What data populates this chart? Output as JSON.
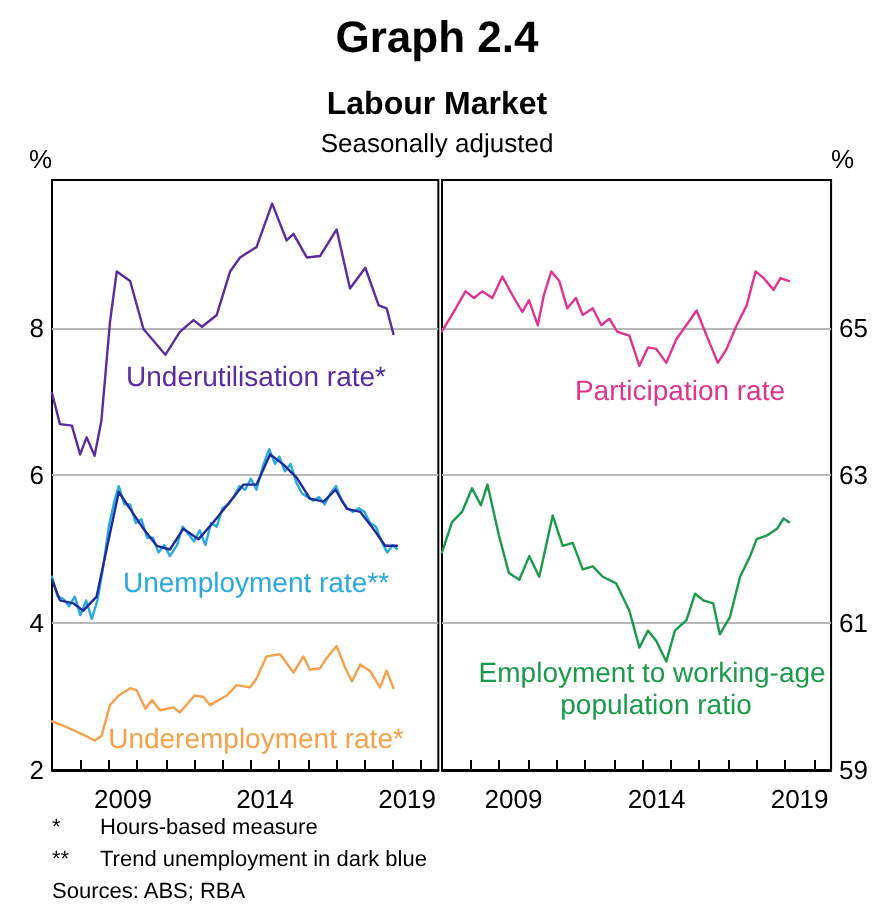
{
  "chart_data": [
    {
      "type": "line",
      "title": "Graph 2.4",
      "subtitle": "Labour Market",
      "ylabel": "%",
      "annotations": [
        "Seasonally adjusted",
        "* Hours-based measure",
        "** Trend unemployment in dark blue",
        "Sources: ABS; RBA"
      ],
      "xlim": [
        2007,
        2020.6
      ],
      "xticks": [
        {
          "value": 2008,
          "label": null
        },
        {
          "value": 2009,
          "label": null
        },
        {
          "value": 2010,
          "label": null
        },
        {
          "value": 2011,
          "label": null
        },
        {
          "value": 2012,
          "label": null
        },
        {
          "value": 2013,
          "label": null
        },
        {
          "value": 2014,
          "label": null
        },
        {
          "value": 2015,
          "label": null
        },
        {
          "value": 2016,
          "label": null
        },
        {
          "value": 2017,
          "label": null
        },
        {
          "value": 2018,
          "label": null
        },
        {
          "value": 2019,
          "label": null
        },
        {
          "value": 2020,
          "label": null
        },
        {
          "value": 2009.5,
          "label": "2009"
        },
        {
          "value": 2014.5,
          "label": "2014"
        },
        {
          "value": 2019.5,
          "label": "2019"
        }
      ],
      "ylim": [
        2,
        10
      ],
      "yticks": [
        2,
        4,
        6,
        8
      ],
      "grid": "y",
      "series": [
        {
          "name": "Underutilisation rate*",
          "color": "#5b2ca0",
          "x": [
            2007,
            2007.28,
            2007.7,
            2007.99,
            2008.22,
            2008.5,
            2008.74,
            2009.04,
            2009.28,
            2009.75,
            2010.22,
            2010.99,
            2011.5,
            2011.98,
            2012.28,
            2012.8,
            2013.27,
            2013.62,
            2014.2,
            2014.75,
            2015.26,
            2015.5,
            2015.97,
            2016.44,
            2017.02,
            2017.49,
            2018.03,
            2018.5,
            2018.78,
            2019.02
          ],
          "values": [
            7.11,
            6.69,
            6.67,
            6.28,
            6.51,
            6.26,
            6.74,
            8.07,
            8.76,
            8.63,
            7.98,
            7.63,
            7.94,
            8.1,
            8.01,
            8.17,
            8.76,
            8.95,
            9.09,
            9.68,
            9.18,
            9.27,
            8.95,
            8.97,
            9.33,
            8.53,
            8.81,
            8.3,
            8.26,
            7.91
          ]
        },
        {
          "name": "Unemployment rate**",
          "color": "#2aa9e0",
          "x": [
            2007,
            2007.2,
            2007.4,
            2007.6,
            2007.8,
            2008,
            2008.2,
            2008.4,
            2008.6,
            2008.8,
            2009,
            2009.2,
            2009.35,
            2009.55,
            2009.75,
            2009.95,
            2010.15,
            2010.35,
            2010.55,
            2010.75,
            2010.95,
            2011.15,
            2011.4,
            2011.6,
            2011.8,
            2012,
            2012.2,
            2012.4,
            2012.6,
            2012.8,
            2013,
            2013.2,
            2013.4,
            2013.6,
            2013.8,
            2014,
            2014.2,
            2014.45,
            2014.65,
            2014.85,
            2015,
            2015.2,
            2015.4,
            2015.6,
            2015.8,
            2016,
            2016.2,
            2016.4,
            2016.6,
            2016.8,
            2017,
            2017.2,
            2017.4,
            2017.6,
            2017.8,
            2018,
            2018.2,
            2018.4,
            2018.6,
            2018.8,
            2019,
            2019.14
          ],
          "values": [
            4.62,
            4.35,
            4.32,
            4.22,
            4.35,
            4.1,
            4.3,
            4.05,
            4.3,
            4.75,
            5.3,
            5.65,
            5.85,
            5.6,
            5.6,
            5.35,
            5.4,
            5.15,
            5.15,
            4.95,
            5.05,
            4.9,
            5.05,
            5.3,
            5.2,
            5.1,
            5.25,
            5.05,
            5.35,
            5.3,
            5.55,
            5.6,
            5.7,
            5.85,
            5.8,
            5.95,
            5.8,
            6.15,
            6.35,
            6.15,
            6.25,
            6.05,
            6.15,
            5.9,
            5.75,
            5.7,
            5.65,
            5.7,
            5.6,
            5.75,
            5.85,
            5.65,
            5.55,
            5.5,
            5.55,
            5.5,
            5.35,
            5.3,
            5.1,
            4.95,
            5.05,
            5
          ]
        },
        {
          "color": "#1c2a9a",
          "x": [
            2007,
            2007.28,
            2007.75,
            2008.1,
            2008.57,
            2008.92,
            2009.35,
            2009.75,
            2010.22,
            2010.69,
            2011.15,
            2011.62,
            2012.16,
            2012.68,
            2013.27,
            2013.74,
            2014.2,
            2014.68,
            2015.15,
            2015.62,
            2016.08,
            2016.56,
            2016.98,
            2017.38,
            2017.85,
            2018.31,
            2018.73,
            2019.14
          ],
          "values": [
            4.58,
            4.3,
            4.26,
            4.16,
            4.35,
            4.99,
            5.77,
            5.54,
            5.27,
            5.04,
            4.99,
            5.27,
            5.13,
            5.36,
            5.64,
            5.87,
            5.87,
            6.28,
            6.14,
            5.96,
            5.68,
            5.64,
            5.8,
            5.54,
            5.5,
            5.27,
            5.04,
            5.04
          ]
        },
        {
          "name": "Underemployment rate*",
          "color": "#f7a04a",
          "x": [
            2007,
            2007.52,
            2008.1,
            2008.5,
            2008.74,
            2009.04,
            2009.35,
            2009.75,
            2009.98,
            2010.29,
            2010.52,
            2010.8,
            2011.27,
            2011.5,
            2012.02,
            2012.33,
            2012.56,
            2013.15,
            2013.5,
            2013.97,
            2014.2,
            2014.55,
            2015.03,
            2015.5,
            2015.85,
            2016.08,
            2016.44,
            2016.67,
            2017.02,
            2017.33,
            2017.56,
            2017.85,
            2018.2,
            2018.55,
            2018.78,
            2019.02
          ],
          "values": [
            2.66,
            2.58,
            2.48,
            2.4,
            2.46,
            2.88,
            3.01,
            3.11,
            3.08,
            2.83,
            2.95,
            2.81,
            2.85,
            2.78,
            3.01,
            2.99,
            2.88,
            3.01,
            3.15,
            3.12,
            3.24,
            3.54,
            3.57,
            3.32,
            3.54,
            3.36,
            3.38,
            3.52,
            3.68,
            3.38,
            3.2,
            3.43,
            3.34,
            3.12,
            3.35,
            3.11
          ]
        }
      ]
    },
    {
      "type": "line",
      "ylabel": "%",
      "xlim": [
        2007,
        2020.6
      ],
      "xticks": [
        {
          "value": 2008,
          "label": null
        },
        {
          "value": 2009,
          "label": null
        },
        {
          "value": 2010,
          "label": null
        },
        {
          "value": 2011,
          "label": null
        },
        {
          "value": 2012,
          "label": null
        },
        {
          "value": 2013,
          "label": null
        },
        {
          "value": 2014,
          "label": null
        },
        {
          "value": 2015,
          "label": null
        },
        {
          "value": 2016,
          "label": null
        },
        {
          "value": 2017,
          "label": null
        },
        {
          "value": 2018,
          "label": null
        },
        {
          "value": 2019,
          "label": null
        },
        {
          "value": 2020,
          "label": null
        },
        {
          "value": 2009.5,
          "label": "2009"
        },
        {
          "value": 2014.5,
          "label": "2014"
        },
        {
          "value": 2019.5,
          "label": "2019"
        }
      ],
      "ylim": [
        59,
        67
      ],
      "yticks": [
        59,
        61,
        63,
        65
      ],
      "grid": "y",
      "series": [
        {
          "name": "Participation rate",
          "color": "#e0338f",
          "x": [
            2007,
            2007.35,
            2007.82,
            2008.12,
            2008.41,
            2008.76,
            2009.11,
            2009.46,
            2009.81,
            2010.04,
            2010.35,
            2010.56,
            2010.82,
            2011.1,
            2011.38,
            2011.68,
            2011.92,
            2012.27,
            2012.57,
            2012.85,
            2013.13,
            2013.55,
            2013.9,
            2014.2,
            2014.49,
            2014.84,
            2015.19,
            2015.54,
            2015.9,
            2016.25,
            2016.64,
            2016.95,
            2017.3,
            2017.65,
            2017.96,
            2018.24,
            2018.59,
            2018.83,
            2019.13
          ],
          "values": [
            64.95,
            65.17,
            65.49,
            65.4,
            65.49,
            65.4,
            65.69,
            65.44,
            65.21,
            65.37,
            65.03,
            65.44,
            65.76,
            65.63,
            65.26,
            65.4,
            65.17,
            65.26,
            65.03,
            65.12,
            64.94,
            64.89,
            64.48,
            64.73,
            64.71,
            64.52,
            64.84,
            65.03,
            65.23,
            64.89,
            64.52,
            64.71,
            65.03,
            65.3,
            65.76,
            65.67,
            65.51,
            65.67,
            65.63
          ]
        },
        {
          "name": "Employment to working-age population ratio",
          "color": "#1a9a4a",
          "x": [
            2007,
            2007.35,
            2007.7,
            2008.05,
            2008.36,
            2008.59,
            2008.99,
            2009.34,
            2009.7,
            2010.05,
            2010.4,
            2010.87,
            2011.22,
            2011.57,
            2011.92,
            2012.27,
            2012.62,
            2013.09,
            2013.55,
            2013.9,
            2014.2,
            2014.49,
            2014.84,
            2015.14,
            2015.54,
            2015.85,
            2016.13,
            2016.48,
            2016.71,
            2017.06,
            2017.42,
            2017.77,
            2018,
            2018.36,
            2018.71,
            2018.94,
            2019.13
          ],
          "values": [
            61.95,
            62.36,
            62.5,
            62.82,
            62.59,
            62.87,
            62.18,
            61.67,
            61.58,
            61.9,
            61.62,
            62.45,
            62.04,
            62.08,
            61.72,
            61.76,
            61.62,
            61.53,
            61.16,
            60.66,
            60.89,
            60.75,
            60.47,
            60.89,
            61.03,
            61.39,
            61.3,
            61.26,
            60.84,
            61.07,
            61.62,
            61.9,
            62.13,
            62.18,
            62.27,
            62.41,
            62.36
          ]
        }
      ]
    }
  ]
}
